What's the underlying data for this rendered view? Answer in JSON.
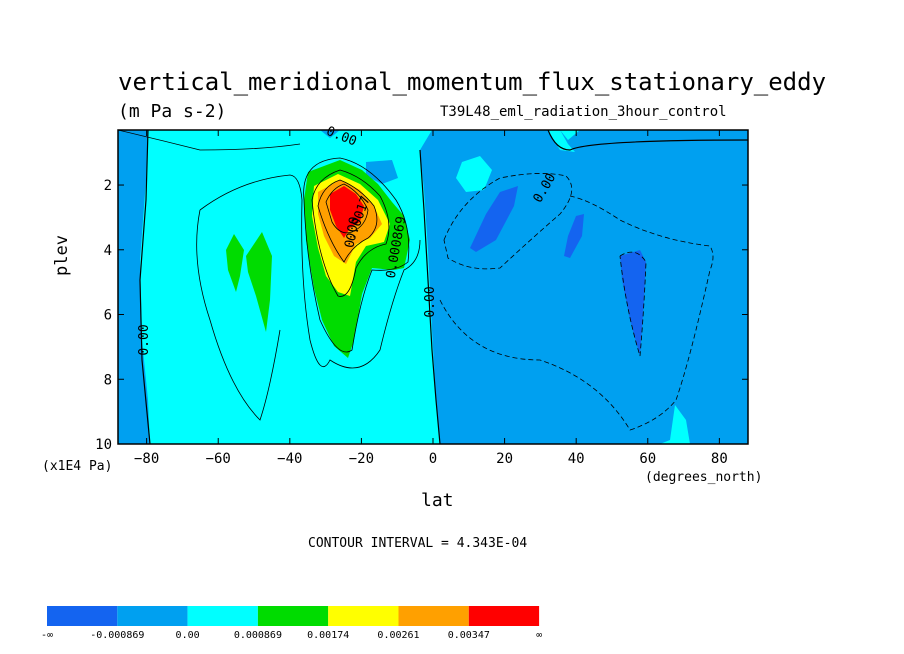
{
  "chart_data": {
    "type": "contour",
    "title": "vertical_meridional_momentum_flux_stationary_eddy",
    "units": "(m Pa s-2)",
    "run_label": "T39L48_eml_radiation_3hour_control",
    "xlabel": "lat",
    "x_units": "(degrees_north)",
    "ylabel": "plev",
    "y_units": "(x1E4 Pa)",
    "x_ticks": [
      "-80",
      "-60",
      "-40",
      "-20",
      "0",
      "20",
      "40",
      "60",
      "80"
    ],
    "x_tick_values": [
      -80,
      -60,
      -40,
      -20,
      0,
      20,
      40,
      60,
      80
    ],
    "y_ticks": [
      "2",
      "4",
      "6",
      "8",
      "10"
    ],
    "y_tick_values": [
      2,
      4,
      6,
      8,
      10
    ],
    "xlim": [
      -88,
      88
    ],
    "ylim": [
      10,
      0.3
    ],
    "contour_interval": "CONTOUR INTERVAL = 4.343E-04",
    "contour_labels": [
      "0.00",
      "0.00",
      "0.00",
      "0.00",
      "0.00",
      "0.0017",
      "0.000869"
    ],
    "colorbar": {
      "labels": [
        "-∞",
        "-0.000869",
        "0.00",
        "0.000869",
        "0.00174",
        "0.00261",
        "0.00347",
        "∞"
      ],
      "colors": [
        "#1464f0",
        "#00a0f0",
        "#00ffff",
        "#00dc00",
        "#ffff00",
        "#ffa000",
        "#ff0000"
      ]
    }
  }
}
